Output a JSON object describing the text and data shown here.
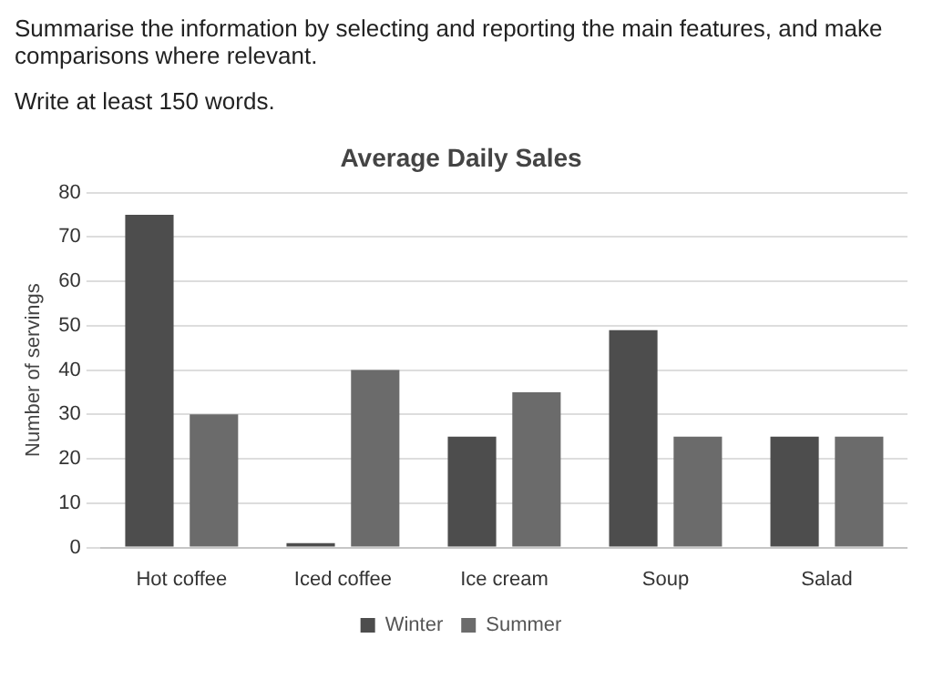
{
  "chart_data": {
    "type": "bar",
    "title": "Average Daily Sales",
    "ylabel": "Number of servings",
    "annotations": [
      "Summarise the information by selecting and reporting the main features, and make comparisons where relevant.",
      "Write at least 150 words."
    ],
    "categories": [
      "Hot coffee",
      "Iced coffee",
      "Ice cream",
      "Soup",
      "Salad"
    ],
    "series": [
      {
        "name": "Winter",
        "color": "#4d4d4d",
        "values": [
          75,
          1,
          25,
          49,
          25
        ]
      },
      {
        "name": "Summer",
        "color": "#6b6b6b",
        "values": [
          30,
          40,
          35,
          25,
          25
        ]
      }
    ],
    "ylim": [
      0,
      80
    ],
    "yticks": [
      0,
      10,
      20,
      30,
      40,
      50,
      60,
      70,
      80
    ],
    "grid": "y",
    "legend": "bottom"
  }
}
